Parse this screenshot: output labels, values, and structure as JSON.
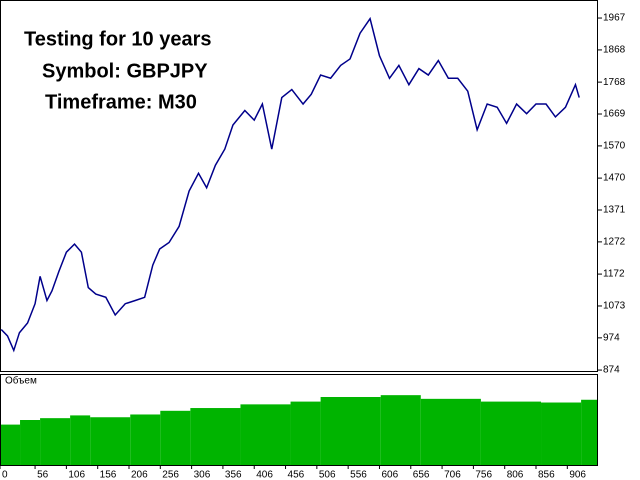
{
  "chart_data": [
    {
      "type": "line",
      "annotations": [
        "Testing for 10 years",
        "Symbol: GBPJPY",
        "Timeframe: M30"
      ],
      "x": [
        2,
        12,
        22,
        31,
        44,
        56,
        64,
        75,
        83,
        94,
        106,
        119,
        130,
        141,
        153,
        169,
        184,
        200,
        216,
        231,
        244,
        255,
        270,
        286,
        302,
        317,
        330,
        344,
        359,
        372,
        391,
        406,
        419,
        434,
        450,
        466,
        484,
        497,
        512,
        528,
        544,
        559,
        575,
        591,
        606,
        622,
        637,
        653,
        669,
        684,
        700,
        716,
        731,
        747,
        762,
        778,
        794,
        809,
        825,
        841,
        856,
        872,
        887,
        903,
        919,
        925
      ],
      "values": [
        1000,
        980,
        935,
        990,
        1020,
        1080,
        1165,
        1090,
        1120,
        1180,
        1240,
        1265,
        1240,
        1130,
        1110,
        1100,
        1045,
        1080,
        1090,
        1100,
        1200,
        1250,
        1270,
        1320,
        1430,
        1485,
        1440,
        1510,
        1560,
        1635,
        1680,
        1650,
        1700,
        1560,
        1720,
        1745,
        1700,
        1730,
        1790,
        1780,
        1820,
        1840,
        1920,
        1965,
        1850,
        1780,
        1820,
        1760,
        1810,
        1790,
        1835,
        1780,
        1780,
        1740,
        1620,
        1700,
        1690,
        1640,
        1700,
        1670,
        1700,
        1700,
        1660,
        1690,
        1760,
        1720
      ],
      "color": "#00008b",
      "xlim": [
        0,
        955
      ],
      "xticks": [
        0,
        56,
        106,
        156,
        206,
        256,
        306,
        356,
        406,
        456,
        506,
        556,
        606,
        656,
        706,
        756,
        806,
        856,
        906
      ],
      "ylim": [
        868,
        2023
      ],
      "yticks": [
        874,
        974,
        1073,
        1172,
        1272,
        1371,
        1470,
        1570,
        1669,
        1768,
        1868,
        1967
      ]
    },
    {
      "type": "bar",
      "title": "Объем",
      "x": [
        0,
        32,
        64,
        112,
        144,
        208,
        256,
        304,
        384,
        464,
        512,
        608,
        672,
        768,
        864,
        928
      ],
      "values": [
        45,
        50,
        52,
        55,
        53,
        56,
        60,
        63,
        67,
        70,
        75,
        77,
        73,
        70,
        69,
        72
      ],
      "color": "#00b400",
      "xlim": [
        0,
        955
      ],
      "ylim": [
        0,
        100
      ]
    }
  ]
}
